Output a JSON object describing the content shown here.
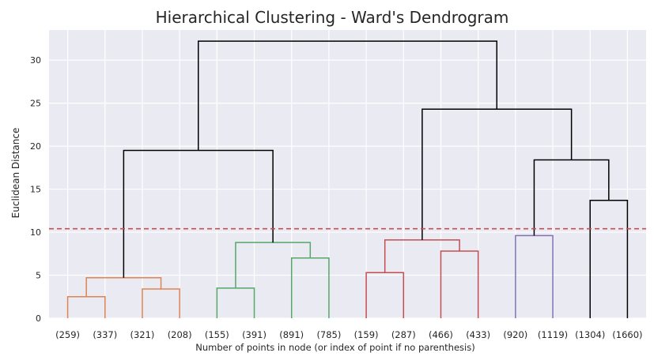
{
  "chart_data": {
    "type": "dendrogram",
    "title": "Hierarchical Clustering - Ward's Dendrogram",
    "xlabel": "Number of points in node (or index of point if no parenthesis)",
    "ylabel": "Euclidean Distance",
    "ylim": [
      0,
      33.5
    ],
    "yticks": [
      "0",
      "5",
      "10",
      "15",
      "20",
      "25",
      "30"
    ],
    "leaf_labels": [
      "(259)",
      "(337)",
      "(321)",
      "(208)",
      "(155)",
      "(391)",
      "(891)",
      "(785)",
      "(159)",
      "(287)",
      "(466)",
      "(433)",
      "(920)",
      "(1119)",
      "(1304)",
      "(1660)"
    ],
    "cut_height": 10.4,
    "cut_line_color": "#c44e52",
    "background_color": "#eaeaf2",
    "grid": true,
    "cluster_colors": [
      "#dd8452",
      "#55a868",
      "#c44e52",
      "#8172b3"
    ],
    "above_threshold_color": "#000000",
    "merges": [
      {
        "left": "leaf-0",
        "right": "leaf-1",
        "height": 2.5,
        "color": "#dd8452"
      },
      {
        "left": "leaf-2",
        "right": "leaf-3",
        "height": 3.4,
        "color": "#dd8452"
      },
      {
        "left": "m0",
        "right": "m1",
        "height": 4.7,
        "color": "#dd8452"
      },
      {
        "left": "leaf-4",
        "right": "leaf-5",
        "height": 3.5,
        "color": "#55a868"
      },
      {
        "left": "leaf-6",
        "right": "leaf-7",
        "height": 7.0,
        "color": "#55a868"
      },
      {
        "left": "m3",
        "right": "m4",
        "height": 8.8,
        "color": "#55a868"
      },
      {
        "left": "m2",
        "right": "m5",
        "height": 19.5,
        "color": "#000000"
      },
      {
        "left": "leaf-8",
        "right": "leaf-9",
        "height": 5.3,
        "color": "#c44e52"
      },
      {
        "left": "leaf-10",
        "right": "leaf-11",
        "height": 7.8,
        "color": "#c44e52"
      },
      {
        "left": "m7",
        "right": "m8",
        "height": 9.1,
        "color": "#c44e52"
      },
      {
        "left": "leaf-12",
        "right": "leaf-13",
        "height": 9.6,
        "color": "#8172b3"
      },
      {
        "left": "leaf-14",
        "right": "leaf-15",
        "height": 13.7,
        "color": "#000000"
      },
      {
        "left": "m10",
        "right": "m11",
        "height": 18.4,
        "color": "#000000"
      },
      {
        "left": "m9",
        "right": "m12",
        "height": 24.3,
        "color": "#000000"
      },
      {
        "left": "m6",
        "right": "m13",
        "height": 32.2,
        "color": "#000000"
      }
    ]
  }
}
